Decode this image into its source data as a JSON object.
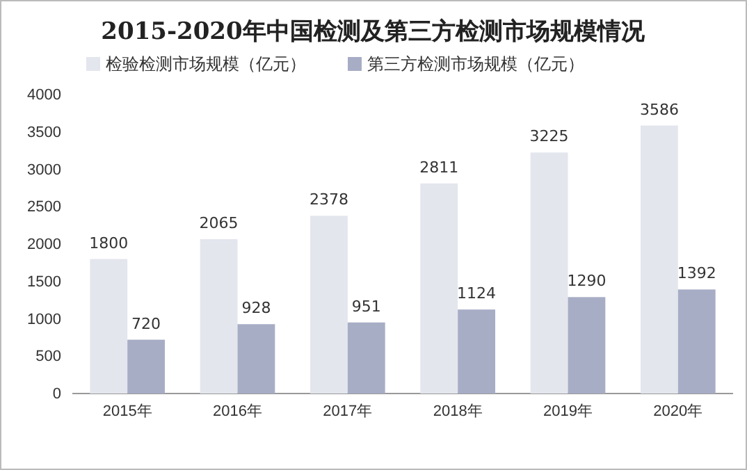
{
  "chart_data": {
    "type": "bar",
    "title": "2015-2020年中国检测及第三方检测市场规模情况",
    "categories": [
      "2015年",
      "2016年",
      "2017年",
      "2018年",
      "2019年",
      "2020年"
    ],
    "series": [
      {
        "name": "检验检测市场规模（亿元）",
        "color": "#e4e6ee",
        "values": [
          1800,
          2065,
          2378,
          2811,
          3225,
          3586
        ]
      },
      {
        "name": "第三方检测市场规模（亿元）",
        "color": "#a8adc6",
        "values": [
          720,
          928,
          951,
          1124,
          1290,
          1392
        ]
      }
    ],
    "ylim": [
      0,
      4000
    ],
    "yticks": [
      0,
      500,
      1000,
      1500,
      2000,
      2500,
      3000,
      3500,
      4000
    ],
    "grid": false,
    "legend": "top",
    "data_labels": true
  }
}
